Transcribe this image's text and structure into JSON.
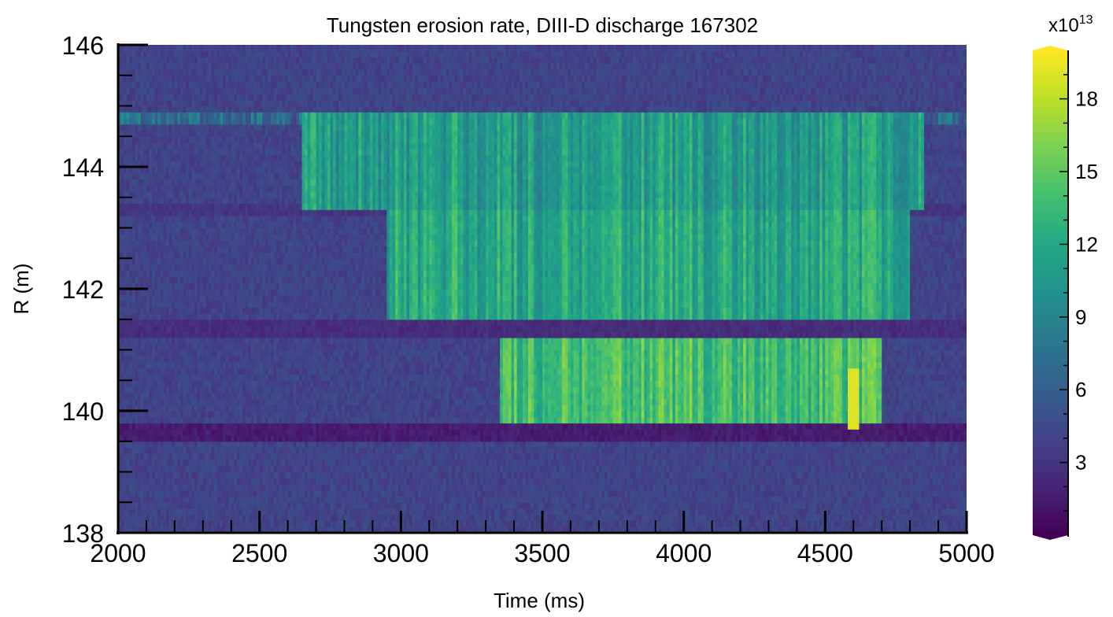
{
  "chart_data": {
    "type": "heatmap",
    "title": "Tungsten erosion rate, DIII-D discharge 167302",
    "xlabel": "Time (ms)",
    "ylabel": "R (m)",
    "xlim": [
      2000,
      5000
    ],
    "ylim": [
      138,
      146
    ],
    "xticks": [
      2000,
      2500,
      3000,
      3500,
      4000,
      4500,
      5000
    ],
    "yticks": [
      138,
      140,
      142,
      144,
      146
    ],
    "colorbar": {
      "colormap": "viridis",
      "range": [
        0,
        20
      ],
      "ticks": [
        3,
        6,
        9,
        12,
        15,
        18
      ],
      "exponent_label": "x10",
      "exponent": "13"
    },
    "bands": [
      {
        "r_min": 144.7,
        "r_max": 144.9,
        "t_start": 2000,
        "t_end": 5000,
        "value": 7
      },
      {
        "r_min": 143.3,
        "r_max": 144.9,
        "t_start": 2650,
        "t_end": 4850,
        "value": 11
      },
      {
        "r_min": 141.5,
        "r_max": 143.3,
        "t_start": 2950,
        "t_end": 4800,
        "value": 12
      },
      {
        "r_min": 139.8,
        "r_max": 141.2,
        "t_start": 3350,
        "t_end": 4700,
        "value": 14
      }
    ],
    "low_bands": [
      {
        "r_min": 139.5,
        "r_max": 139.8,
        "value": 1
      },
      {
        "r_min": 141.2,
        "r_max": 141.5,
        "value": 2
      },
      {
        "r_min": 143.2,
        "r_max": 143.4,
        "value": 2.5
      }
    ],
    "background_value": 4,
    "peak": {
      "t": 4600,
      "r": 140.2,
      "value": 19
    }
  }
}
